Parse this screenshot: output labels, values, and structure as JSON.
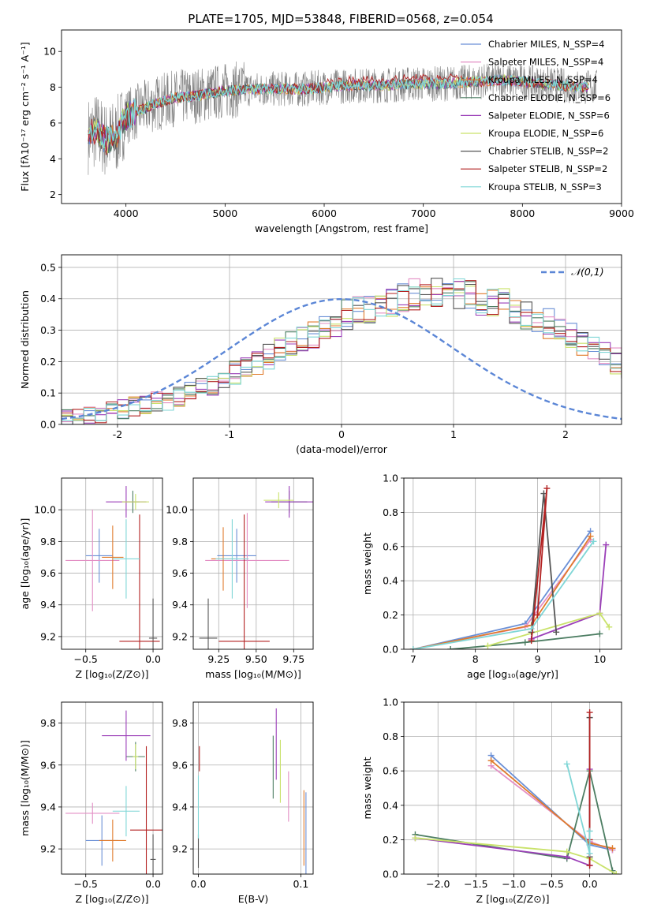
{
  "figure": {
    "title": "PLATE=1705, MJD=53848, FIBERID=0568, z=0.054",
    "colors": [
      "#6a8fd6",
      "#e38ec4",
      "#e07b2c",
      "#4c7d62",
      "#9b3fb8",
      "#c9e26a",
      "#555555",
      "#b32222",
      "#7fd6d6"
    ]
  },
  "chart_data": [
    {
      "id": "spectrum",
      "type": "line",
      "title": "",
      "xlabel": "wavelength [Angstrom, rest frame]",
      "ylabel": "Flux [fλ10⁻¹⁷ erg cm⁻² s⁻¹ A⁻¹]",
      "xlim": [
        3350,
        9000
      ],
      "ylim": [
        1.5,
        11.2
      ],
      "xticks": [
        4000,
        5000,
        6000,
        7000,
        8000,
        9000
      ],
      "yticks": [
        2,
        4,
        6,
        8,
        10
      ],
      "grid": false,
      "legend": "top-right",
      "legend_entries": [
        "Chabrier MILES, N_SSP=4",
        "Salpeter MILES, N_SSP=4",
        "Kroupa MILES, N_SSP=4",
        "Chabrier ELODIE, N_SSP=6",
        "Salpeter ELODIE, N_SSP=6",
        "Kroupa ELODIE, N_SSP=6",
        "Chabrier STELIB, N_SSP=2",
        "Salpeter STELIB, N_SSP=2",
        "Kroupa STELIB, N_SSP=3"
      ],
      "data_profile": {
        "x": [
          3620,
          3700,
          3800,
          3900,
          4000,
          4100,
          4300,
          4500,
          4800,
          5000,
          5200,
          5500,
          5800,
          6000,
          6300,
          6600,
          6900,
          7200,
          7500,
          7800,
          8200,
          8600,
          8750
        ],
        "y": [
          5.3,
          5.6,
          5.0,
          5.2,
          6.4,
          6.6,
          7.1,
          7.4,
          7.6,
          7.8,
          7.9,
          7.9,
          7.9,
          8.0,
          8.1,
          8.1,
          8.2,
          8.2,
          8.3,
          8.4,
          8.2,
          8.0,
          8.0
        ]
      }
    },
    {
      "id": "residuals",
      "type": "histogram",
      "xlabel": "(data-model)/error",
      "ylabel": "Normed distribution",
      "xlim": [
        -2.5,
        2.5
      ],
      "ylim": [
        0,
        0.54
      ],
      "xticks": [
        -2,
        -1,
        0,
        1,
        2
      ],
      "yticks": [
        0.0,
        0.1,
        0.2,
        0.3,
        0.4,
        0.5
      ],
      "grid": true,
      "legend": "top-right",
      "legend_entries": [
        "𝒩(0,1)"
      ],
      "bin_width": 0.1,
      "bin_start": -2.5,
      "reference_curve": "normal(0,1)",
      "base_values": [
        0.018,
        0.022,
        0.026,
        0.034,
        0.04,
        0.048,
        0.055,
        0.06,
        0.07,
        0.08,
        0.09,
        0.103,
        0.116,
        0.13,
        0.147,
        0.163,
        0.18,
        0.2,
        0.218,
        0.238,
        0.255,
        0.272,
        0.29,
        0.31,
        0.328,
        0.35,
        0.362,
        0.375,
        0.39,
        0.388,
        0.398,
        0.412,
        0.405,
        0.415,
        0.425,
        0.42,
        0.41,
        0.4,
        0.39,
        0.38,
        0.37,
        0.352,
        0.34,
        0.322,
        0.302,
        0.28,
        0.26,
        0.24,
        0.222,
        0.202,
        0.183,
        0.166,
        0.149,
        0.132,
        0.117,
        0.103,
        0.091,
        0.08,
        0.07,
        0.061,
        0.053,
        0.047,
        0.042,
        0.038,
        0.034,
        0.031,
        0.029,
        0.027,
        0.025,
        0.024
      ]
    },
    {
      "id": "age-vs-Z",
      "type": "errorbar",
      "xlabel": "Z [log₁₀(Z/Z⊙)]",
      "ylabel": "age  [log₁₀(age/yr)]",
      "xlim": [
        -0.68,
        0.07
      ],
      "ylim": [
        9.12,
        10.2
      ],
      "xticks": [
        -0.5,
        0.0
      ],
      "xticklabels": [
        "−0.5",
        "0.0"
      ],
      "yticks": [
        9.2,
        9.4,
        9.6,
        9.8,
        10.0
      ],
      "grid": true,
      "points": [
        {
          "series": 0,
          "x": -0.4,
          "y": 9.71,
          "xerr": 0.1,
          "yerr": 0.17
        },
        {
          "series": 1,
          "x": -0.45,
          "y": 9.68,
          "xerr": 0.2,
          "yerr": 0.32
        },
        {
          "series": 2,
          "x": -0.3,
          "y": 9.7,
          "xerr": 0.08,
          "yerr": 0.2
        },
        {
          "series": 3,
          "x": -0.15,
          "y": 10.05,
          "xerr": 0.05,
          "yerr": 0.07
        },
        {
          "series": 4,
          "x": -0.2,
          "y": 10.05,
          "xerr": 0.15,
          "yerr": 0.1
        },
        {
          "series": 5,
          "x": -0.13,
          "y": 10.05,
          "xerr": 0.1,
          "yerr": 0.05
        },
        {
          "series": 6,
          "x": 0.0,
          "y": 9.19,
          "xerr": 0.03,
          "yerr": 0.25
        },
        {
          "series": 7,
          "x": -0.1,
          "y": 9.17,
          "xerr": 0.15,
          "yerr": 0.8
        },
        {
          "series": 8,
          "x": -0.2,
          "y": 9.69,
          "xerr": 0.1,
          "yerr": 0.25
        }
      ]
    },
    {
      "id": "age-vs-mass",
      "type": "errorbar",
      "xlabel": "mass [log₁₀(M/M⊙)]",
      "ylabel": "",
      "xlim": [
        9.08,
        9.88
      ],
      "ylim": [
        9.12,
        10.2
      ],
      "xticks": [
        9.25,
        9.5,
        9.75
      ],
      "xticklabels": [
        "9.25",
        "9.50",
        "9.75"
      ],
      "yticks": [
        9.2,
        9.4,
        9.6,
        9.8,
        10.0
      ],
      "grid": true,
      "points": [
        {
          "series": 0,
          "x": 9.37,
          "y": 9.71,
          "xerr": 0.13,
          "yerr": 0.17
        },
        {
          "series": 1,
          "x": 9.44,
          "y": 9.68,
          "xerr": 0.28,
          "yerr": 0.3
        },
        {
          "series": 2,
          "x": 9.28,
          "y": 9.69,
          "xerr": 0.08,
          "yerr": 0.2
        },
        {
          "series": 3,
          "x": 9.72,
          "y": 10.05,
          "xerr": 0.12,
          "yerr": 0.07
        },
        {
          "series": 4,
          "x": 9.72,
          "y": 10.05,
          "xerr": 0.16,
          "yerr": 0.1
        },
        {
          "series": 5,
          "x": 9.65,
          "y": 10.06,
          "xerr": 0.1,
          "yerr": 0.05
        },
        {
          "series": 6,
          "x": 9.18,
          "y": 9.19,
          "xerr": 0.06,
          "yerr": 0.25
        },
        {
          "series": 7,
          "x": 9.42,
          "y": 9.17,
          "xerr": 0.17,
          "yerr": 0.8
        },
        {
          "series": 8,
          "x": 9.34,
          "y": 9.69,
          "xerr": 0.11,
          "yerr": 0.25
        }
      ]
    },
    {
      "id": "mw-vs-age",
      "type": "line",
      "xlabel": "age  [log₁₀(age/yr)]",
      "ylabel": "mass weight",
      "xlim": [
        6.85,
        10.35
      ],
      "ylim": [
        0,
        1.0
      ],
      "xticks": [
        7,
        8,
        9,
        10
      ],
      "yticks": [
        0.0,
        0.2,
        0.4,
        0.6,
        0.8,
        1.0
      ],
      "grid": true,
      "series": [
        {
          "color": 0,
          "x": [
            7.0,
            8.8,
            9.85
          ],
          "y": [
            0.0,
            0.15,
            0.69
          ]
        },
        {
          "color": 1,
          "x": [
            7.0,
            8.8,
            9.85
          ],
          "y": [
            0.0,
            0.13,
            0.64
          ]
        },
        {
          "color": 2,
          "x": [
            7.0,
            8.9,
            9.85
          ],
          "y": [
            0.0,
            0.14,
            0.66
          ]
        },
        {
          "color": 3,
          "x": [
            7.6,
            8.8,
            10.0
          ],
          "y": [
            0.0,
            0.04,
            0.09
          ]
        },
        {
          "color": 4,
          "x": [
            8.9,
            10.0,
            10.1
          ],
          "y": [
            0.06,
            0.21,
            0.61
          ]
        },
        {
          "color": 5,
          "x": [
            8.2,
            10.0,
            10.15
          ],
          "y": [
            0.02,
            0.21,
            0.13
          ]
        },
        {
          "color": 6,
          "x": [
            9.3,
            9.1,
            8.9
          ],
          "y": [
            0.1,
            0.91,
            0.1
          ]
        },
        {
          "color": 7,
          "x": [
            8.9,
            9.15,
            9.0
          ],
          "y": [
            0.05,
            0.94,
            0.2
          ]
        },
        {
          "color": 8,
          "x": [
            7.0,
            8.9,
            9.9
          ],
          "y": [
            0.0,
            0.12,
            0.63
          ]
        }
      ]
    },
    {
      "id": "mass-vs-Z",
      "type": "errorbar",
      "xlabel": "Z [log₁₀(Z/Z⊙)]",
      "ylabel": "mass [log₁₀(M/M⊙)]",
      "xlim": [
        -0.68,
        0.07
      ],
      "ylim": [
        9.08,
        9.9
      ],
      "xticks": [
        -0.5,
        0.0
      ],
      "xticklabels": [
        "−0.5",
        "0.0"
      ],
      "yticks": [
        9.2,
        9.4,
        9.6,
        9.8
      ],
      "grid": true,
      "points": [
        {
          "series": 0,
          "x": -0.38,
          "y": 9.24,
          "xerr": 0.12,
          "yerr": 0.12
        },
        {
          "series": 1,
          "x": -0.45,
          "y": 9.37,
          "xerr": 0.2,
          "yerr": 0.05
        },
        {
          "series": 2,
          "x": -0.3,
          "y": 9.24,
          "xerr": 0.1,
          "yerr": 0.1
        },
        {
          "series": 3,
          "x": -0.13,
          "y": 9.64,
          "xerr": 0.07,
          "yerr": 0.07
        },
        {
          "series": 4,
          "x": -0.2,
          "y": 9.74,
          "xerr": 0.18,
          "yerr": 0.12
        },
        {
          "series": 5,
          "x": -0.13,
          "y": 9.64,
          "xerr": 0.02,
          "yerr": 0.06
        },
        {
          "series": 6,
          "x": 0.0,
          "y": 9.15,
          "xerr": 0.02,
          "yerr": 0.12
        },
        {
          "series": 7,
          "x": -0.05,
          "y": 9.29,
          "xerr": 0.12,
          "yerr": 0.4
        },
        {
          "series": 8,
          "x": -0.2,
          "y": 9.38,
          "xerr": 0.1,
          "yerr": 0.12
        }
      ]
    },
    {
      "id": "mass-vs-ebv",
      "type": "errorbar",
      "xlabel": "E(B-V)",
      "ylabel": "",
      "xlim": [
        -0.005,
        0.112
      ],
      "ylim": [
        9.08,
        9.9
      ],
      "xticks": [
        0.0,
        0.1
      ],
      "xticklabels": [
        "0.0",
        "0.1"
      ],
      "yticks": [
        9.2,
        9.4,
        9.6,
        9.8
      ],
      "grid": true,
      "points": [
        {
          "series": 0,
          "x": 0.105,
          "y": 9.25,
          "xerr": 0.0,
          "yerr": 0.22
        },
        {
          "series": 1,
          "x": 0.088,
          "y": 9.45,
          "xerr": 0.0,
          "yerr": 0.12
        },
        {
          "series": 2,
          "x": 0.103,
          "y": 9.3,
          "xerr": 0.0,
          "yerr": 0.18
        },
        {
          "series": 3,
          "x": 0.073,
          "y": 9.59,
          "xerr": 0.0,
          "yerr": 0.15
        },
        {
          "series": 4,
          "x": 0.076,
          "y": 9.7,
          "xerr": 0.0,
          "yerr": 0.17
        },
        {
          "series": 5,
          "x": 0.08,
          "y": 9.57,
          "xerr": 0.0,
          "yerr": 0.15
        },
        {
          "series": 6,
          "x": 0.0,
          "y": 9.19,
          "xerr": 0.0,
          "yerr": 0.08
        },
        {
          "series": 7,
          "x": 0.001,
          "y": 9.63,
          "xerr": 0.0,
          "yerr": 0.06
        },
        {
          "series": 8,
          "x": 0.0,
          "y": 9.4,
          "xerr": 0.0,
          "yerr": 0.15
        }
      ]
    },
    {
      "id": "mw-vs-Z",
      "type": "line",
      "xlabel": "Z [log₁₀(Z/Z⊙)]",
      "ylabel": "mass weight",
      "xlim": [
        -2.45,
        0.42
      ],
      "ylim": [
        0,
        1.0
      ],
      "xticks": [
        -2.0,
        -1.5,
        -1.0,
        -0.5,
        0.0
      ],
      "xticklabels": [
        "−2.0",
        "−1.5",
        "−1.0",
        "−0.5",
        "0.0"
      ],
      "yticks": [
        0.0,
        0.2,
        0.4,
        0.6,
        0.8,
        1.0
      ],
      "grid": true,
      "series": [
        {
          "color": 0,
          "x": [
            -1.3,
            0.0,
            0.3
          ],
          "y": [
            0.69,
            0.17,
            0.14
          ]
        },
        {
          "color": 1,
          "x": [
            -1.3,
            0.0,
            0.3
          ],
          "y": [
            0.63,
            0.19,
            0.14
          ]
        },
        {
          "color": 2,
          "x": [
            -1.3,
            0.0,
            0.3
          ],
          "y": [
            0.66,
            0.18,
            0.15
          ]
        },
        {
          "color": 3,
          "x": [
            -2.3,
            -0.3,
            0.0,
            0.3
          ],
          "y": [
            0.23,
            0.09,
            0.6,
            0.02
          ]
        },
        {
          "color": 4,
          "x": [
            -2.3,
            -0.3,
            0.0,
            0.0
          ],
          "y": [
            0.21,
            0.1,
            0.05,
            0.61
          ]
        },
        {
          "color": 5,
          "x": [
            -2.3,
            -0.3,
            0.0,
            0.35
          ],
          "y": [
            0.21,
            0.13,
            0.09,
            0.0
          ]
        },
        {
          "color": 6,
          "x": [
            0.0,
            0.0
          ],
          "y": [
            0.91,
            0.1
          ]
        },
        {
          "color": 7,
          "x": [
            0.0,
            0.0,
            0.0
          ],
          "y": [
            0.94,
            0.05,
            0.2
          ]
        },
        {
          "color": 8,
          "x": [
            -0.3,
            0.0,
            0.0
          ],
          "y": [
            0.64,
            0.12,
            0.25
          ]
        }
      ]
    }
  ]
}
